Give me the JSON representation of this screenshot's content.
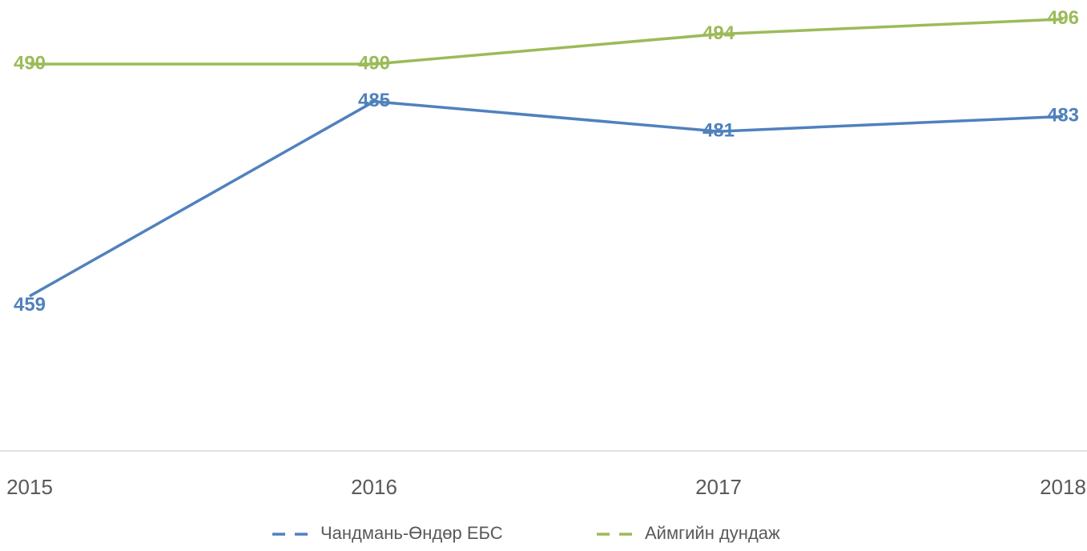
{
  "chart_data": {
    "type": "line",
    "categories": [
      "2015",
      "2016",
      "2017",
      "2018"
    ],
    "series": [
      {
        "name": "Чандмань-Өндөр ЕБС",
        "color": "#4f81bd",
        "values": [
          459,
          485,
          481,
          483
        ]
      },
      {
        "name": "Аймгийн дундаж",
        "color": "#9bbb59",
        "values": [
          490,
          490,
          494,
          496
        ]
      }
    ],
    "ylim": [
      438,
      500
    ],
    "legend": "bottom"
  }
}
